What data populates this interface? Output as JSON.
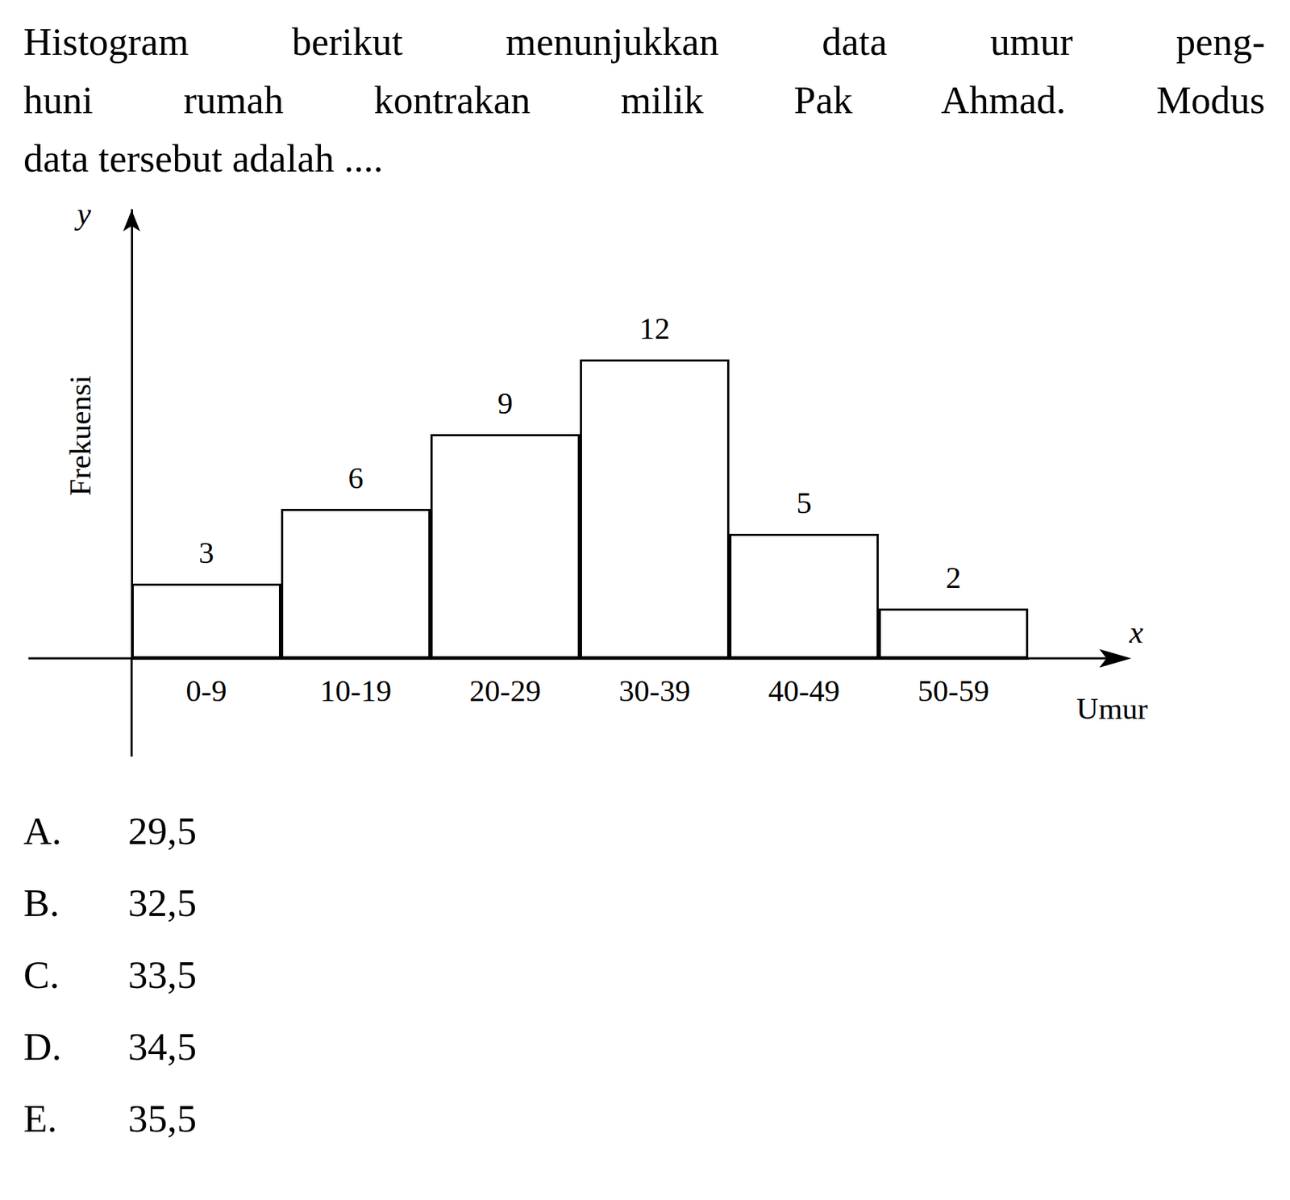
{
  "question": {
    "lines": [
      "Histogram berikut menunjukkan data umur peng-",
      "huni rumah kontrakan milik Pak Ahmad. Modus",
      "data tersebut adalah ...."
    ]
  },
  "chart_data": {
    "type": "bar",
    "categories": [
      "0-9",
      "10-19",
      "20-29",
      "30-39",
      "40-49",
      "50-59"
    ],
    "values": [
      3,
      6,
      9,
      12,
      5,
      2
    ],
    "color": "#ffffff",
    "ylabel": "Frekuensi",
    "xlabel": "Umur",
    "y_axis_symbol": "y",
    "x_axis_symbol": "x",
    "ylim": [
      0,
      18
    ],
    "tick_labels": "x",
    "data_labels": true,
    "grid": false
  },
  "options": [
    {
      "label": "A.",
      "text": "29,5"
    },
    {
      "label": "B.",
      "text": "32,5"
    },
    {
      "label": "C.",
      "text": "33,5"
    },
    {
      "label": "D.",
      "text": "34,5"
    },
    {
      "label": "E.",
      "text": "35,5"
    }
  ]
}
